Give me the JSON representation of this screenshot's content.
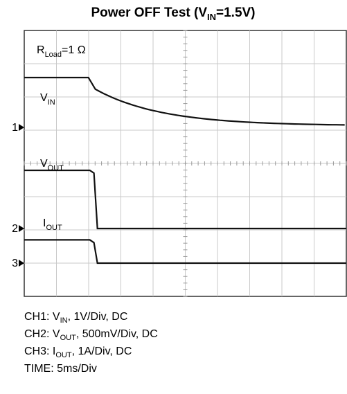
{
  "chart_data": {
    "type": "line",
    "title": {
      "prefix": "Power OFF Test (V",
      "sub": "IN",
      "suffix": "=1.5V)"
    },
    "annotation": {
      "main": "R",
      "sub": "Load",
      "rest": "=1 Ω"
    },
    "grid": true,
    "x_divisions": 10,
    "y_divisions": 8,
    "time_per_div_ms": 5,
    "channel_markers": [
      "1",
      "2",
      "3"
    ],
    "series": [
      {
        "channel": "1",
        "label_main": "V",
        "label_sub": "IN",
        "scale": "1V/Div",
        "coupling": "DC",
        "div_before_off": 1.5,
        "div_after_off": 0.05
      },
      {
        "channel": "2",
        "label_main": "V",
        "label_sub": "OUT",
        "scale": "500mV/Div",
        "coupling": "DC",
        "div_before_off": 1.75,
        "div_after_off": 0.0
      },
      {
        "channel": "3",
        "label_main": "I",
        "label_sub": "OUT",
        "scale": "1A/Div",
        "coupling": "DC",
        "div_before_off": 0.7,
        "div_after_off": 0.0
      }
    ],
    "off_time_div": 2.1
  },
  "legend": {
    "ch1": {
      "prefix": "CH1: V",
      "sub": "IN",
      "suffix": ", 1V/Div, DC"
    },
    "ch2": {
      "prefix": "CH2: V",
      "sub": "OUT",
      "suffix": ", 500mV/Div, DC"
    },
    "ch3": {
      "prefix": "CH3: I",
      "sub": "OUT",
      "suffix": ", 1A/Div, DC"
    },
    "time": "TIME: 5ms/Div"
  }
}
